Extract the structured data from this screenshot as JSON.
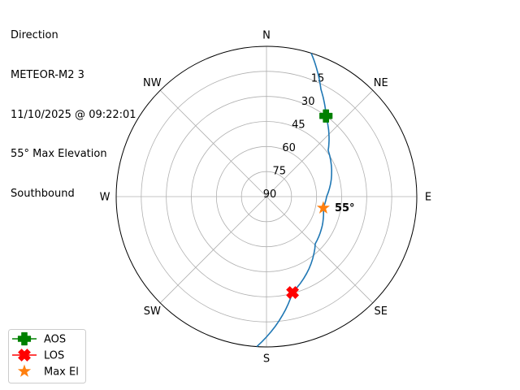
{
  "title_lines": [
    "Direction",
    "METEOR-M2 3",
    "11/10/2025 @ 09:22:01",
    "55° Max Elevation",
    "Southbound"
  ],
  "chart_data": {
    "type": "polar",
    "angular_axis": {
      "direction": "clockwise",
      "zero": "north",
      "tick_labels": [
        {
          "az": 0,
          "label": "N"
        },
        {
          "az": 45,
          "label": "NE"
        },
        {
          "az": 90,
          "label": "E"
        },
        {
          "az": 135,
          "label": "SE"
        },
        {
          "az": 180,
          "label": "S"
        },
        {
          "az": 225,
          "label": "SW"
        },
        {
          "az": 270,
          "label": "W"
        },
        {
          "az": 315,
          "label": "NW"
        }
      ]
    },
    "radial_axis": {
      "quantity": "elevation",
      "range": [
        90,
        0
      ],
      "ticks": [
        90,
        75,
        60,
        45,
        30,
        15
      ],
      "grid": true
    },
    "series": [
      {
        "type": "line",
        "color": "#1f77b4",
        "points": [
          {
            "az": 17.3,
            "el": 0
          },
          {
            "az": 26.9,
            "el": 18
          },
          {
            "az": 36.4,
            "el": 30
          },
          {
            "az": 53.1,
            "el": 43.8
          },
          {
            "az": 90,
            "el": 54
          },
          {
            "az": 101.3,
            "el": 55.3
          },
          {
            "az": 134,
            "el": 49.4
          },
          {
            "az": 164.8,
            "el": 30.5
          },
          {
            "az": 183.7,
            "el": 0
          }
        ]
      },
      {
        "type": "marker",
        "name": "AOS",
        "marker": "plus-filled",
        "color": "#008000",
        "points": [
          {
            "az": 36.4,
            "el": 30
          }
        ]
      },
      {
        "type": "marker",
        "name": "LOS",
        "marker": "x-filled",
        "color": "#ff0000",
        "points": [
          {
            "az": 164.8,
            "el": 30.5
          }
        ]
      },
      {
        "type": "marker",
        "name": "Max El",
        "marker": "star",
        "color": "#ff7f0e",
        "points": [
          {
            "az": 101.3,
            "el": 55.3
          }
        ]
      }
    ],
    "annotations": [
      {
        "text": "55°",
        "az": 101.3,
        "el": 55.3,
        "bold": true
      }
    ],
    "legend": {
      "placement": "bottom-left",
      "entries": [
        "AOS",
        "LOS",
        "Max El"
      ]
    }
  }
}
